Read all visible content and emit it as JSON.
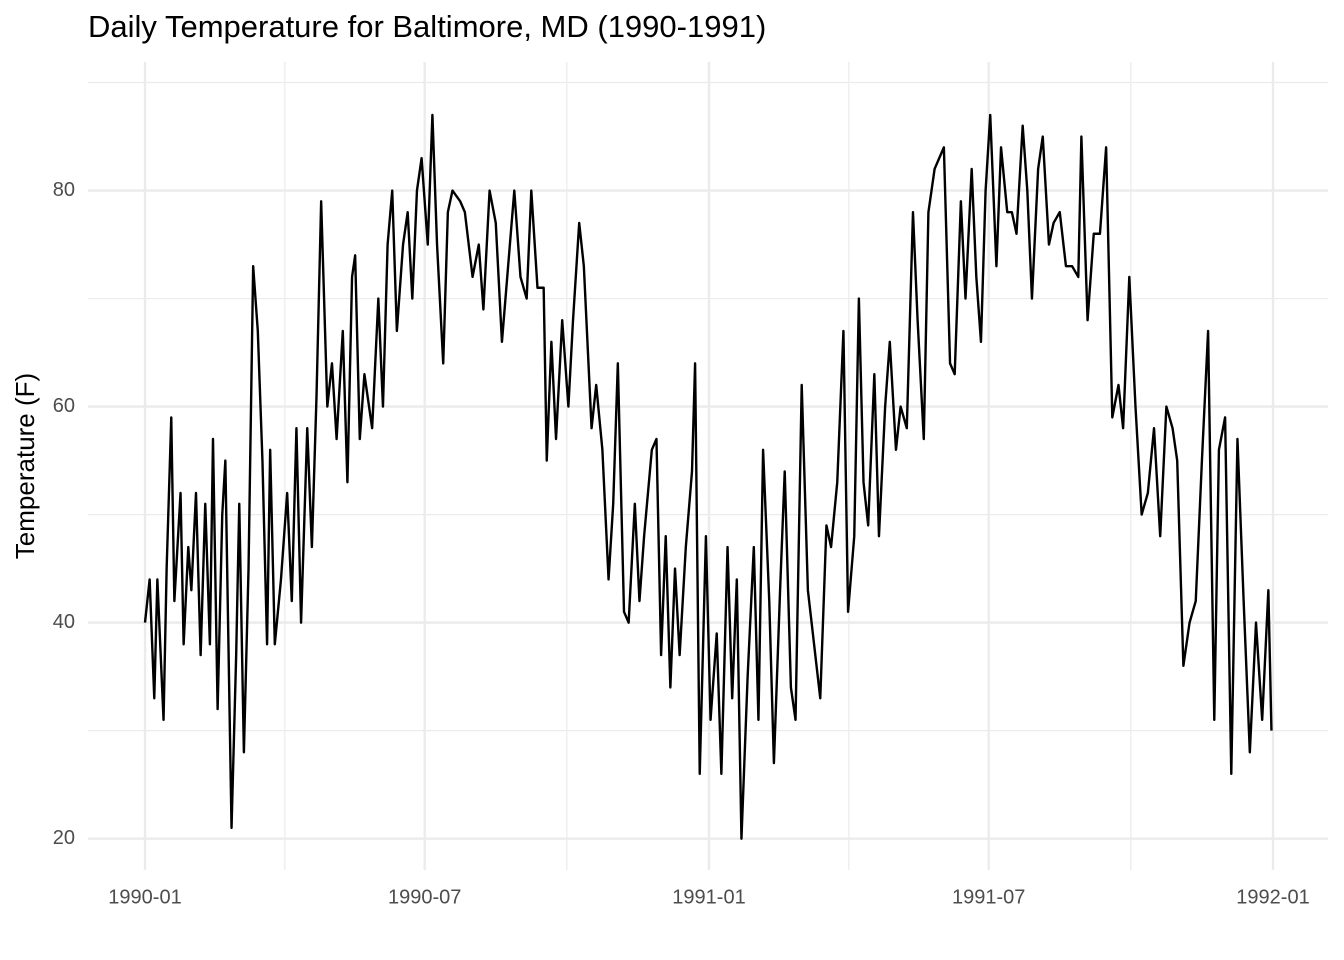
{
  "chart_data": {
    "type": "line",
    "title": "Daily Temperature for Baltimore, MD (1990-1991)",
    "y_label": "Temperature (F)",
    "xlim": [
      "1990-01",
      "1992-01"
    ],
    "xticks": [
      "1990-01",
      "1990-07",
      "1991-01",
      "1991-07",
      "1992-01"
    ],
    "ylim": [
      17.1,
      91.9
    ],
    "yticks": [
      20,
      40,
      60,
      80
    ],
    "grid": true,
    "x": [
      "1990-01-01",
      "1990-01-04",
      "1990-01-07",
      "1990-01-09",
      "1990-01-13",
      "1990-01-15",
      "1990-01-18",
      "1990-01-20",
      "1990-01-24",
      "1990-01-26",
      "1990-01-29",
      "1990-01-31",
      "1990-02-03",
      "1990-02-06",
      "1990-02-09",
      "1990-02-12",
      "1990-02-14",
      "1990-02-17",
      "1990-02-20",
      "1990-02-22",
      "1990-02-26",
      "1990-03-01",
      "1990-03-03",
      "1990-03-06",
      "1990-03-09",
      "1990-03-12",
      "1990-03-15",
      "1990-03-18",
      "1990-03-21",
      "1990-03-23",
      "1990-03-26",
      "1990-03-30",
      "1990-04-03",
      "1990-04-06",
      "1990-04-09",
      "1990-04-12",
      "1990-04-16",
      "1990-04-19",
      "1990-04-22",
      "1990-04-25",
      "1990-04-29",
      "1990-05-02",
      "1990-05-05",
      "1990-05-09",
      "1990-05-12",
      "1990-05-15",
      "1990-05-17",
      "1990-05-20",
      "1990-05-23",
      "1990-05-28",
      "1990-06-01",
      "1990-06-04",
      "1990-06-07",
      "1990-06-10",
      "1990-06-13",
      "1990-06-17",
      "1990-06-20",
      "1990-06-23",
      "1990-06-26",
      "1990-06-29",
      "1990-07-03",
      "1990-07-06",
      "1990-07-09",
      "1990-07-13",
      "1990-07-16",
      "1990-07-19",
      "1990-07-24",
      "1990-07-27",
      "1990-08-01",
      "1990-08-05",
      "1990-08-08",
      "1990-08-12",
      "1990-08-16",
      "1990-08-20",
      "1990-08-24",
      "1990-08-28",
      "1990-09-01",
      "1990-09-05",
      "1990-09-08",
      "1990-09-12",
      "1990-09-16",
      "1990-09-18",
      "1990-09-21",
      "1990-09-24",
      "1990-09-28",
      "1990-10-02",
      "1990-10-05",
      "1990-10-09",
      "1990-10-12",
      "1990-10-17",
      "1990-10-20",
      "1990-10-24",
      "1990-10-28",
      "1990-10-31",
      "1990-11-03",
      "1990-11-07",
      "1990-11-10",
      "1990-11-14",
      "1990-11-17",
      "1990-11-20",
      "1990-11-25",
      "1990-11-28",
      "1990-12-01",
      "1990-12-04",
      "1990-12-07",
      "1990-12-10",
      "1990-12-13",
      "1990-12-17",
      "1990-12-21",
      "1990-12-23",
      "1990-12-26",
      "1990-12-30",
      "1991-01-02",
      "1991-01-06",
      "1991-01-09",
      "1991-01-13",
      "1991-01-16",
      "1991-01-19",
      "1991-01-22",
      "1991-01-26",
      "1991-01-30",
      "1991-02-02",
      "1991-02-05",
      "1991-02-09",
      "1991-02-12",
      "1991-02-16",
      "1991-02-19",
      "1991-02-23",
      "1991-02-26",
      "1991-03-02",
      "1991-03-06",
      "1991-03-10",
      "1991-03-14",
      "1991-03-18",
      "1991-03-21",
      "1991-03-25",
      "1991-03-29",
      "1991-04-01",
      "1991-04-05",
      "1991-04-08",
      "1991-04-11",
      "1991-04-14",
      "1991-04-18",
      "1991-04-21",
      "1991-04-25",
      "1991-04-28",
      "1991-05-02",
      "1991-05-05",
      "1991-05-09",
      "1991-05-13",
      "1991-05-16",
      "1991-05-20",
      "1991-05-23",
      "1991-05-27",
      "1991-05-30",
      "1991-06-02",
      "1991-06-06",
      "1991-06-09",
      "1991-06-13",
      "1991-06-16",
      "1991-06-20",
      "1991-06-23",
      "1991-06-26",
      "1991-06-29",
      "1991-07-02",
      "1991-07-06",
      "1991-07-09",
      "1991-07-13",
      "1991-07-16",
      "1991-07-19",
      "1991-07-23",
      "1991-07-26",
      "1991-07-29",
      "1991-08-02",
      "1991-08-05",
      "1991-08-09",
      "1991-08-12",
      "1991-08-16",
      "1991-08-20",
      "1991-08-24",
      "1991-08-28",
      "1991-08-30",
      "1991-09-03",
      "1991-09-07",
      "1991-09-11",
      "1991-09-15",
      "1991-09-19",
      "1991-09-23",
      "1991-09-26",
      "1991-09-30",
      "1991-10-04",
      "1991-10-08",
      "1991-10-12",
      "1991-10-16",
      "1991-10-20",
      "1991-10-24",
      "1991-10-28",
      "1991-10-31",
      "1991-11-04",
      "1991-11-08",
      "1991-11-12",
      "1991-11-16",
      "1991-11-20",
      "1991-11-24",
      "1991-11-27",
      "1991-12-01",
      "1991-12-05",
      "1991-12-09",
      "1991-12-13",
      "1991-12-17",
      "1991-12-21",
      "1991-12-25",
      "1991-12-29",
      "1991-12-31"
    ],
    "series": [
      {
        "name": "Temperature",
        "color": "#000000",
        "values": [
          40,
          44,
          33,
          44,
          31,
          45,
          59,
          42,
          52,
          38,
          47,
          43,
          52,
          37,
          51,
          38,
          57,
          32,
          50,
          55,
          21,
          37,
          51,
          28,
          45,
          73,
          67,
          55,
          38,
          56,
          38,
          44,
          52,
          42,
          58,
          40,
          58,
          47,
          61,
          79,
          60,
          64,
          57,
          67,
          53,
          72,
          74,
          57,
          63,
          58,
          70,
          60,
          75,
          80,
          67,
          75,
          78,
          70,
          80,
          83,
          75,
          87,
          75,
          64,
          78,
          80,
          79,
          78,
          72,
          75,
          69,
          80,
          77,
          66,
          73,
          80,
          72,
          70,
          80,
          71,
          71,
          55,
          66,
          57,
          68,
          60,
          68,
          77,
          73,
          58,
          62,
          56,
          44,
          51,
          64,
          41,
          40,
          51,
          42,
          48,
          56,
          57,
          37,
          48,
          34,
          45,
          37,
          47,
          54,
          64,
          26,
          48,
          31,
          39,
          26,
          47,
          33,
          44,
          20,
          35,
          47,
          31,
          56,
          42,
          27,
          43,
          54,
          34,
          31,
          62,
          43,
          38,
          33,
          49,
          47,
          53,
          67,
          41,
          48,
          70,
          53,
          49,
          63,
          48,
          60,
          66,
          56,
          60,
          58,
          78,
          68,
          57,
          78,
          82,
          83,
          84,
          64,
          63,
          79,
          70,
          82,
          72,
          66,
          80,
          87,
          73,
          84,
          78,
          78,
          76,
          86,
          80,
          70,
          82,
          85,
          75,
          77,
          78,
          73,
          73,
          72,
          85,
          68,
          76,
          76,
          84,
          59,
          62,
          58,
          72,
          60,
          50,
          52,
          58,
          48,
          60,
          58,
          55,
          36,
          40,
          42,
          55,
          67,
          31,
          56,
          59,
          26,
          57,
          42,
          28,
          40,
          31,
          43,
          30
        ]
      }
    ]
  }
}
